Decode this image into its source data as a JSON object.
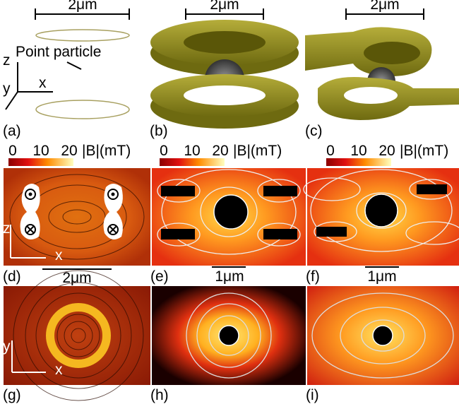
{
  "panels": {
    "a": {
      "label": "(a)",
      "scale": "2μm",
      "particle": "Point particle",
      "axis_z": "z",
      "axis_x": "x",
      "axis_y": "y"
    },
    "b": {
      "label": "(b)",
      "scale": "2μm"
    },
    "c": {
      "label": "(c)",
      "scale": "2μm"
    },
    "d": {
      "label": "(d)",
      "scale": "2μm",
      "axis_z": "z",
      "axis_x": "x"
    },
    "e": {
      "label": "(e)",
      "scale": "1μm"
    },
    "f": {
      "label": "(f)",
      "scale": "1μm"
    },
    "g": {
      "label": "(g)",
      "axis_y": "y",
      "axis_x": "x"
    },
    "h": {
      "label": "(h)"
    },
    "i": {
      "label": "(i)"
    }
  },
  "colorbars": [
    {
      "ticks": [
        0,
        10,
        20
      ],
      "label": "|B|(mT)"
    },
    {
      "ticks": [
        0,
        10,
        20
      ],
      "label": "|B|(mT)"
    },
    {
      "ticks": [
        0,
        10,
        20
      ],
      "label": "|B|(mT)"
    }
  ]
}
